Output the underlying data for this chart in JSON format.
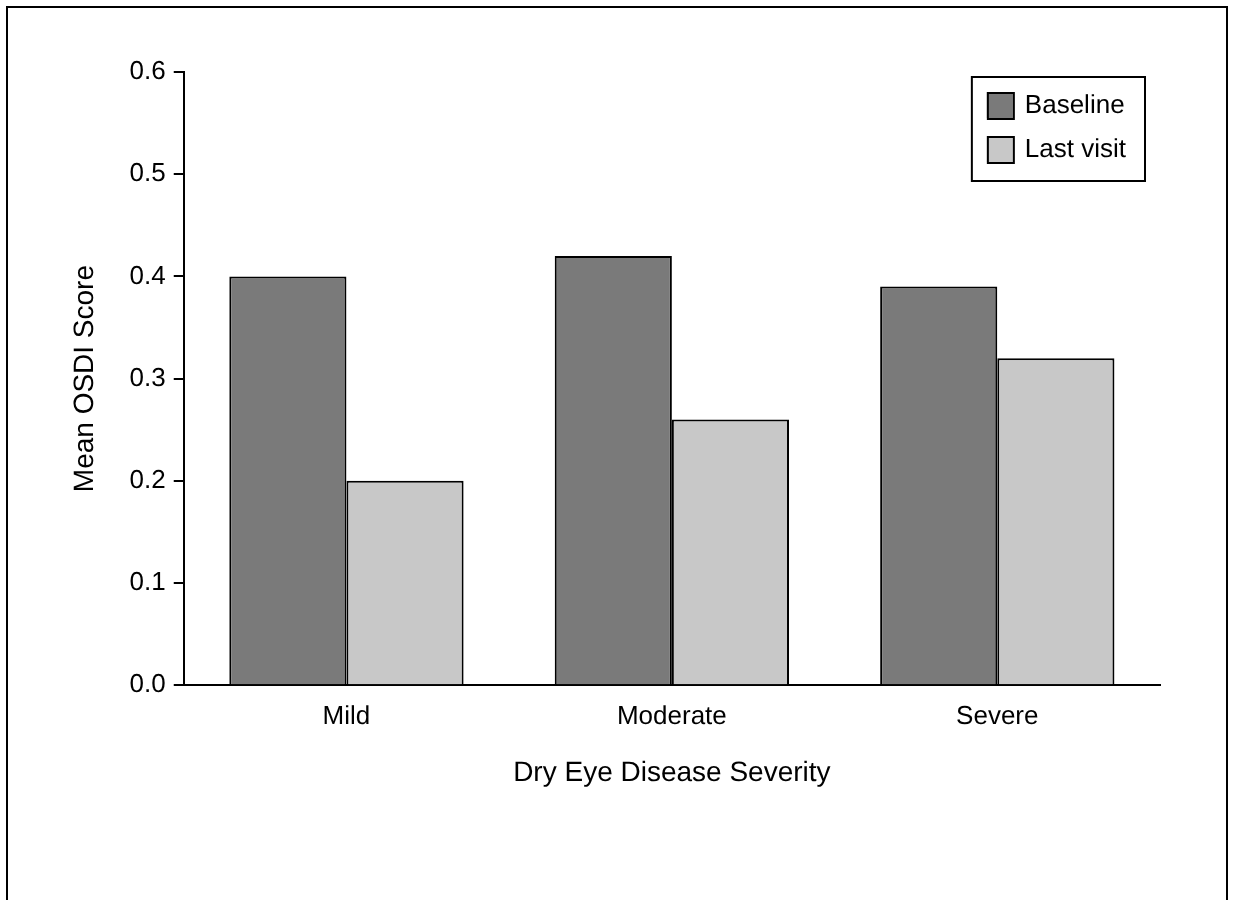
{
  "chart_data": {
    "type": "bar",
    "xlabel": "Dry Eye Disease Severity",
    "ylabel": "Mean OSDI Score",
    "categories": [
      "Mild",
      "Moderate",
      "Severe"
    ],
    "series": [
      {
        "name": "Baseline",
        "color": "#7a7a7a",
        "values": [
          0.4,
          0.42,
          0.39
        ]
      },
      {
        "name": "Last visit",
        "color": "#c8c8c8",
        "values": [
          0.2,
          0.26,
          0.32
        ]
      }
    ],
    "ylim": [
      0,
      0.6
    ],
    "yticks": [
      {
        "value": 0,
        "label": "0.0"
      },
      0.1,
      0.2,
      0.3,
      0.4,
      0.5,
      0.6
    ],
    "legend": "top right"
  }
}
